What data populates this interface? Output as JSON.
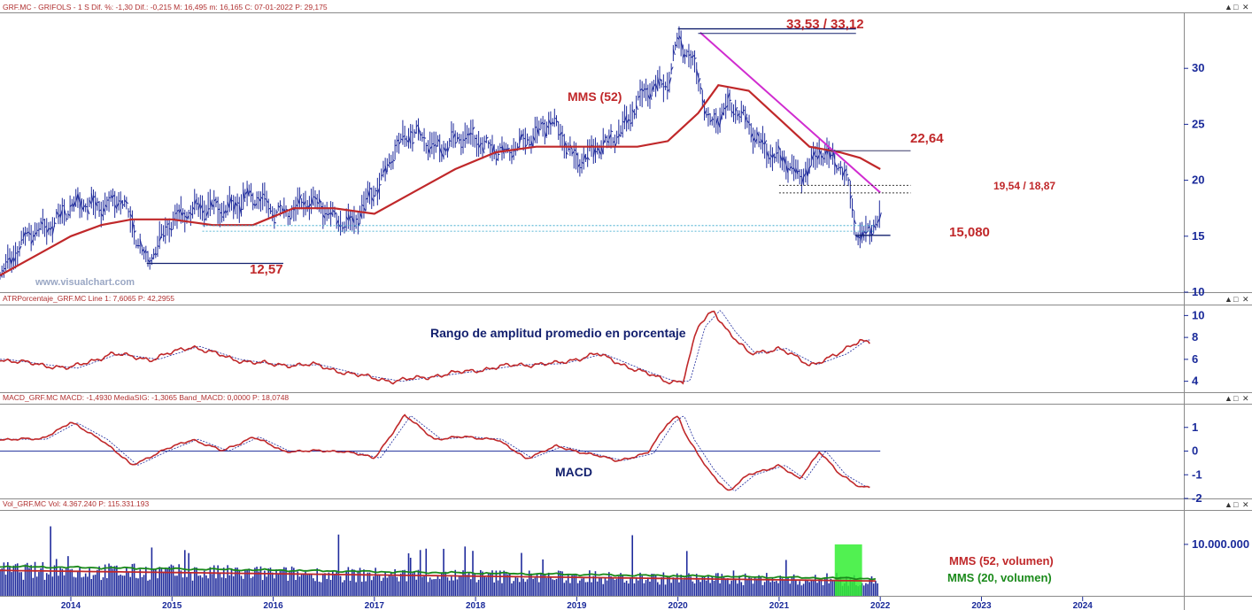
{
  "panels": {
    "price": {
      "header": "GRF.MC - GRIFOLS - 1 S  Dif. %: -1,30  Dif.: -0,215  M: 16,495  m: 16,165  C: 07-01-2022  P: 29,175",
      "annotations": {
        "peak": "33,53 / 33,12",
        "resistance": "22,64",
        "band": "19,54 / 18,87",
        "low": "15,080",
        "support": "12,57",
        "mms": "MMS (52)"
      },
      "watermark": "www.visualchart.com"
    },
    "atr": {
      "header": "ATRPorcentaje_GRF.MC  Line 1: 7,6065  P: 42,2955",
      "title": "Rango de amplitud promedio en porcentaje"
    },
    "macd": {
      "header": "MACD_GRF.MC  MACD: -1,4930  MediaSIG: -1,3065  Band_MACD: 0,0000  P: 18,0748",
      "title": "MACD"
    },
    "vol": {
      "header": "Vol_GRF.MC  Vol: 4.367.240  P: 115.331.193",
      "legend52": "MMS (52, volumen)",
      "legend20": "MMS (20, volumen)"
    }
  },
  "window_controls": [
    "▲",
    "□",
    "✕"
  ],
  "colors": {
    "bars": "#1f2b9c",
    "mms": "#c0282a",
    "trend": "#d02cd0",
    "green": "#1a8a1a",
    "signal": "#1f2b9c"
  },
  "chart_data": [
    {
      "type": "line",
      "title": "GRF.MC - GRIFOLS",
      "x_ticks": [
        "2014",
        "2015",
        "2016",
        "2017",
        "2018",
        "2019",
        "2020",
        "2021",
        "2022",
        "2023",
        "2024"
      ],
      "x_range": [
        2013.3,
        2025.0
      ],
      "ylim": [
        10,
        35
      ],
      "y_ticks": [
        10,
        15,
        20,
        25,
        30
      ],
      "series": [
        {
          "name": "GRF.MC",
          "x": [
            2013.3,
            2013.6,
            2013.9,
            2014.2,
            2014.5,
            2014.75,
            2015.0,
            2015.25,
            2015.5,
            2015.75,
            2016.0,
            2016.3,
            2016.6,
            2016.8,
            2017.0,
            2017.2,
            2017.4,
            2017.7,
            2018.0,
            2018.3,
            2018.5,
            2018.75,
            2019.0,
            2019.3,
            2019.6,
            2019.9,
            2020.0,
            2020.1,
            2020.2,
            2020.3,
            2020.5,
            2020.75,
            2021.0,
            2021.2,
            2021.4,
            2021.6,
            2021.7,
            2021.75,
            2021.8,
            2021.9,
            2022.0
          ],
          "values": [
            12,
            15,
            17,
            18,
            18,
            13,
            16,
            18,
            17,
            19,
            17,
            18,
            17,
            16,
            19,
            23,
            24,
            23,
            24,
            22,
            24,
            25,
            22,
            23,
            27,
            29,
            33,
            31,
            29,
            25,
            27,
            24,
            22,
            20,
            23,
            21,
            19,
            16,
            15.1,
            16,
            16.5
          ]
        },
        {
          "name": "MMS (52)",
          "x": [
            2013.3,
            2013.7,
            2014.0,
            2014.3,
            2014.6,
            2015.0,
            2015.4,
            2015.8,
            2016.2,
            2016.6,
            2017.0,
            2017.4,
            2017.8,
            2018.2,
            2018.6,
            2019.0,
            2019.3,
            2019.6,
            2019.9,
            2020.2,
            2020.4,
            2020.7,
            2021.0,
            2021.3,
            2021.6,
            2021.8,
            2022.0
          ],
          "values": [
            11.5,
            13.5,
            15,
            16,
            16.5,
            16.5,
            16,
            16,
            17.5,
            17.5,
            17,
            19,
            21,
            22.5,
            23,
            23,
            23,
            23,
            23.5,
            26,
            28.5,
            28,
            25.5,
            23,
            22.5,
            22,
            21
          ]
        }
      ],
      "levels": [
        {
          "label": "33,53 / 33,12",
          "value": 33.3
        },
        {
          "label": "22,64",
          "value": 22.64
        },
        {
          "label": "19,54 / 18,87",
          "value": 19.2
        },
        {
          "label": "15,080",
          "value": 15.08
        },
        {
          "label": "12,57",
          "value": 12.57
        }
      ]
    },
    {
      "type": "line",
      "title": "ATRPorcentaje_GRF.MC",
      "ylim": [
        3,
        11
      ],
      "y_ticks": [
        4,
        6,
        8,
        10
      ],
      "series": [
        {
          "name": "ATRPorcentaje_GRF.MC",
          "x": [
            2013.3,
            2013.7,
            2014.0,
            2014.4,
            2014.8,
            2015.2,
            2015.6,
            2016.0,
            2016.4,
            2016.8,
            2017.2,
            2017.6,
            2018.0,
            2018.4,
            2018.8,
            2019.2,
            2019.6,
            2019.9,
            2020.05,
            2020.2,
            2020.35,
            2020.5,
            2020.7,
            2021.0,
            2021.3,
            2021.6,
            2021.8,
            2021.9
          ],
          "values": [
            6,
            5.5,
            5.2,
            6.5,
            6,
            7.2,
            6,
            5.5,
            5.5,
            4.6,
            4,
            4.5,
            5,
            5.5,
            5.6,
            6.5,
            5,
            4,
            4,
            9,
            10.5,
            8.5,
            6.5,
            7,
            5.5,
            6.5,
            7.8,
            7.6
          ]
        }
      ]
    },
    {
      "type": "line",
      "title": "MACD_GRF.MC",
      "ylim": [
        -2,
        2
      ],
      "y_ticks": [
        -2,
        -1,
        0,
        1
      ],
      "series": [
        {
          "name": "MACD",
          "x": [
            2013.3,
            2013.7,
            2014.0,
            2014.3,
            2014.6,
            2014.9,
            2015.2,
            2015.5,
            2015.8,
            2016.1,
            2016.4,
            2016.7,
            2017.0,
            2017.3,
            2017.6,
            2017.9,
            2018.2,
            2018.5,
            2018.8,
            2019.1,
            2019.4,
            2019.7,
            2019.9,
            2020.0,
            2020.1,
            2020.3,
            2020.5,
            2020.7,
            2021.0,
            2021.2,
            2021.4,
            2021.6,
            2021.8,
            2021.9
          ],
          "values": [
            0.5,
            0.5,
            1.2,
            0.5,
            -0.6,
            0,
            0.5,
            0,
            0.6,
            0,
            0,
            0,
            -0.3,
            1.5,
            0.5,
            0.6,
            0.5,
            -0.3,
            0.2,
            -0.1,
            -0.4,
            -0.1,
            1.2,
            1.5,
            0.5,
            -0.8,
            -1.7,
            -1,
            -0.6,
            -1.2,
            0,
            -1,
            -1.5,
            -1.5
          ]
        }
      ]
    },
    {
      "type": "bar",
      "title": "Vol_GRF.MC",
      "y_ticks": [
        "10.000.000"
      ],
      "series": [
        {
          "name": "MMS (52, volumen)"
        },
        {
          "name": "MMS (20, volumen)"
        }
      ]
    }
  ]
}
